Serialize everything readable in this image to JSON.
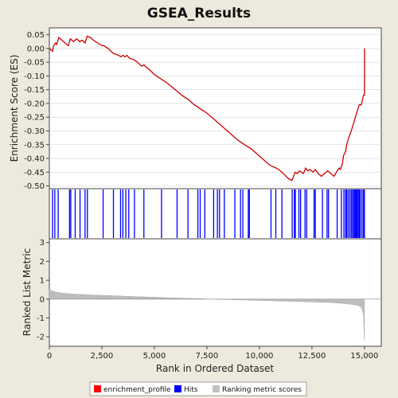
{
  "chart_data": {
    "type": "line",
    "title": "GSEA_Results",
    "xlabel": "Rank in Ordered Dataset",
    "xlim": [
      0,
      15800
    ],
    "x_ticks": [
      "0",
      "2,500",
      "5,000",
      "7,500",
      "10,000",
      "12,500",
      "15,000"
    ],
    "x_tick_values": [
      0,
      2500,
      5000,
      7500,
      10000,
      12500,
      15000
    ],
    "panels": [
      {
        "name": "enrichment",
        "ylabel": "Enrichment Score (ES)",
        "ylim": [
          -0.51,
          0.075
        ],
        "y_ticks": [
          "0.05",
          "0.00",
          "-0.05",
          "-0.10",
          "-0.15",
          "-0.20",
          "-0.25",
          "-0.30",
          "-0.35",
          "-0.40",
          "-0.45",
          "-0.50"
        ],
        "y_tick_values": [
          0.05,
          0.0,
          -0.05,
          -0.1,
          -0.15,
          -0.2,
          -0.25,
          -0.3,
          -0.35,
          -0.4,
          -0.45,
          -0.5
        ],
        "grid": true,
        "color": "#cc0000",
        "series": [
          {
            "name": "enrichment_profile",
            "x": [
              0,
              150,
              200,
              300,
              350,
              450,
              600,
              750,
              900,
              1000,
              1150,
              1300,
              1450,
              1550,
              1700,
              1800,
              1950,
              2100,
              2300,
              2500,
              2600,
              2800,
              3000,
              3100,
              3300,
              3400,
              3500,
              3600,
              3700,
              3800,
              4000,
              4200,
              4400,
              4500,
              4800,
              5000,
              5300,
              5600,
              6000,
              6300,
              6600,
              6900,
              7200,
              7500,
              7800,
              8100,
              8400,
              8700,
              9000,
              9300,
              9600,
              9900,
              10200,
              10500,
              10800,
              11000,
              11200,
              11400,
              11550,
              11650,
              11700,
              11800,
              11900,
              12000,
              12100,
              12200,
              12300,
              12400,
              12550,
              12650,
              12800,
              12950,
              13100,
              13250,
              13400,
              13550,
              13700,
              13800,
              13850,
              13950,
              14000,
              14100,
              14150,
              14250,
              14350,
              14450,
              14550,
              14650,
              14750,
              14850,
              14950,
              15000,
              15005
            ],
            "y": [
              0.0,
              -0.01,
              0.01,
              0.02,
              0.015,
              0.04,
              0.03,
              0.02,
              0.01,
              0.035,
              0.025,
              0.035,
              0.025,
              0.03,
              0.02,
              0.045,
              0.04,
              0.03,
              0.02,
              0.01,
              0.01,
              0.0,
              -0.015,
              -0.02,
              -0.025,
              -0.03,
              -0.025,
              -0.03,
              -0.025,
              -0.035,
              -0.04,
              -0.05,
              -0.065,
              -0.06,
              -0.08,
              -0.095,
              -0.11,
              -0.125,
              -0.15,
              -0.17,
              -0.185,
              -0.205,
              -0.22,
              -0.235,
              -0.255,
              -0.275,
              -0.295,
              -0.315,
              -0.335,
              -0.35,
              -0.365,
              -0.385,
              -0.405,
              -0.425,
              -0.435,
              -0.445,
              -0.46,
              -0.475,
              -0.48,
              -0.46,
              -0.45,
              -0.455,
              -0.445,
              -0.45,
              -0.455,
              -0.435,
              -0.445,
              -0.44,
              -0.45,
              -0.44,
              -0.455,
              -0.465,
              -0.455,
              -0.445,
              -0.455,
              -0.465,
              -0.445,
              -0.435,
              -0.44,
              -0.42,
              -0.39,
              -0.375,
              -0.35,
              -0.325,
              -0.305,
              -0.28,
              -0.255,
              -0.23,
              -0.205,
              -0.205,
              -0.17,
              -0.17,
              0.0
            ]
          }
        ]
      },
      {
        "name": "hits",
        "color": "#0000ff",
        "legend_label": "Hits",
        "hit_ranks": [
          150,
          260,
          420,
          960,
          1020,
          1230,
          1460,
          1700,
          1810,
          2560,
          3050,
          3390,
          3500,
          3640,
          3780,
          4050,
          4500,
          5340,
          6080,
          6600,
          7070,
          7180,
          7400,
          7820,
          8000,
          8100,
          8330,
          8830,
          9100,
          9210,
          9470,
          9520,
          10550,
          10780,
          11070,
          11560,
          11660,
          11710,
          11880,
          11960,
          12170,
          12250,
          12600,
          12660,
          13000,
          13220,
          13290,
          13700,
          13900,
          14020,
          14100,
          14150,
          14220,
          14300,
          14370,
          14430,
          14490,
          14540,
          14580,
          14620,
          14650,
          14700,
          14750,
          14800,
          14880,
          14950,
          15000
        ]
      },
      {
        "name": "ranking",
        "ylabel": "Ranked List Metric",
        "ylim": [
          -2.5,
          3.2
        ],
        "y_ticks": [
          "3",
          "2",
          "1",
          "0",
          "-1",
          "-2"
        ],
        "y_tick_values": [
          3,
          2,
          1,
          0,
          -1,
          -2
        ],
        "color": "#c0c0c0",
        "series": [
          {
            "name": "Ranking metric scores",
            "x": [
              0,
              100,
              300,
              600,
              1000,
              2000,
              3000,
              4000,
              5000,
              6000,
              7000,
              7500,
              8000,
              9000,
              10000,
              11000,
              12000,
              13000,
              13500,
              14000,
              14400,
              14700,
              14850,
              14950,
              15000
            ],
            "y": [
              0.55,
              0.45,
              0.38,
              0.32,
              0.28,
              0.22,
              0.18,
              0.14,
              0.1,
              0.06,
              0.03,
              0.01,
              -0.01,
              -0.04,
              -0.07,
              -0.1,
              -0.13,
              -0.17,
              -0.19,
              -0.23,
              -0.28,
              -0.34,
              -0.45,
              -0.8,
              -2.2
            ]
          }
        ]
      }
    ],
    "legend": {
      "placement": "bottom",
      "entries": [
        {
          "label": "enrichment_profile",
          "color": "#ff0000"
        },
        {
          "label": "Hits",
          "color": "#0000ff"
        },
        {
          "label": "Ranking metric scores",
          "color": "#c0c0c0"
        }
      ]
    }
  }
}
